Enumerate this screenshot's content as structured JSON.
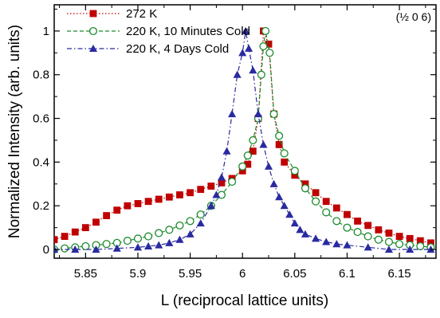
{
  "chart_data": {
    "type": "scatter",
    "xlabel": "L (reciprocal lattice units)",
    "ylabel": "Normalized Intensity (arb. units)",
    "annotation": "(½ 0 6)",
    "xlim": [
      5.82,
      6.185
    ],
    "ylim": [
      -0.04,
      1.12
    ],
    "x_ticks": [
      5.85,
      5.9,
      5.95,
      6.0,
      6.05,
      6.1,
      6.15
    ],
    "x_tick_labels": [
      "5.85",
      "5.9",
      "5.95",
      "6",
      "6.05",
      "6.1",
      "6.15"
    ],
    "y_ticks": [
      0,
      0.2,
      0.4,
      0.6,
      0.8,
      1.0
    ],
    "y_tick_labels": [
      "0",
      "0.2",
      "0.4",
      "0.6",
      "0.8",
      "1"
    ],
    "grid": false,
    "legend_position": "top-left",
    "series": [
      {
        "name": "272 K",
        "color": "#c00000",
        "marker": "square",
        "line": "dotted",
        "points": [
          [
            5.82,
            0.045
          ],
          [
            5.83,
            0.06
          ],
          [
            5.84,
            0.08
          ],
          [
            5.85,
            0.1
          ],
          [
            5.86,
            0.125
          ],
          [
            5.87,
            0.155
          ],
          [
            5.88,
            0.18
          ],
          [
            5.89,
            0.2
          ],
          [
            5.9,
            0.21
          ],
          [
            5.91,
            0.22
          ],
          [
            5.92,
            0.23
          ],
          [
            5.93,
            0.24
          ],
          [
            5.94,
            0.25
          ],
          [
            5.95,
            0.26
          ],
          [
            5.96,
            0.275
          ],
          [
            5.97,
            0.29
          ],
          [
            5.98,
            0.305
          ],
          [
            5.99,
            0.325
          ],
          [
            6.0,
            0.36
          ],
          [
            6.005,
            0.39
          ],
          [
            6.01,
            0.45
          ],
          [
            6.015,
            0.6
          ],
          [
            6.02,
            1.0
          ],
          [
            6.025,
            0.94
          ],
          [
            6.03,
            0.62
          ],
          [
            6.035,
            0.48
          ],
          [
            6.04,
            0.4
          ],
          [
            6.05,
            0.34
          ],
          [
            6.06,
            0.3
          ],
          [
            6.07,
            0.26
          ],
          [
            6.08,
            0.22
          ],
          [
            6.09,
            0.19
          ],
          [
            6.1,
            0.16
          ],
          [
            6.11,
            0.13
          ],
          [
            6.12,
            0.11
          ],
          [
            6.13,
            0.09
          ],
          [
            6.14,
            0.075
          ],
          [
            6.15,
            0.06
          ],
          [
            6.16,
            0.05
          ],
          [
            6.17,
            0.04
          ],
          [
            6.18,
            0.03
          ]
        ]
      },
      {
        "name": "220 K, 10 Minutes Cold",
        "color": "#1a8a2a",
        "marker": "circle",
        "line": "dashed",
        "points": [
          [
            5.82,
            0.0
          ],
          [
            5.83,
            0.005
          ],
          [
            5.84,
            0.01
          ],
          [
            5.85,
            0.015
          ],
          [
            5.86,
            0.02
          ],
          [
            5.87,
            0.025
          ],
          [
            5.88,
            0.03
          ],
          [
            5.89,
            0.04
          ],
          [
            5.9,
            0.05
          ],
          [
            5.91,
            0.06
          ],
          [
            5.92,
            0.075
          ],
          [
            5.93,
            0.09
          ],
          [
            5.94,
            0.11
          ],
          [
            5.95,
            0.13
          ],
          [
            5.96,
            0.16
          ],
          [
            5.97,
            0.2
          ],
          [
            5.98,
            0.25
          ],
          [
            5.99,
            0.31
          ],
          [
            6.0,
            0.38
          ],
          [
            6.005,
            0.43
          ],
          [
            6.01,
            0.5
          ],
          [
            6.015,
            0.6
          ],
          [
            6.018,
            0.8
          ],
          [
            6.02,
            0.93
          ],
          [
            6.022,
            1.0
          ],
          [
            6.026,
            0.9
          ],
          [
            6.03,
            0.62
          ],
          [
            6.035,
            0.52
          ],
          [
            6.04,
            0.44
          ],
          [
            6.05,
            0.36
          ],
          [
            6.06,
            0.28
          ],
          [
            6.07,
            0.22
          ],
          [
            6.08,
            0.17
          ],
          [
            6.09,
            0.13
          ],
          [
            6.1,
            0.1
          ],
          [
            6.11,
            0.08
          ],
          [
            6.12,
            0.06
          ],
          [
            6.13,
            0.045
          ],
          [
            6.14,
            0.035
          ],
          [
            6.15,
            0.025
          ],
          [
            6.16,
            0.02
          ],
          [
            6.17,
            0.015
          ],
          [
            6.18,
            0.01
          ]
        ]
      },
      {
        "name": "220 K, 4 Days Cold",
        "color": "#2a2aa0",
        "marker": "triangle",
        "line": "dash-dot",
        "points": [
          [
            5.82,
            0.0
          ],
          [
            5.84,
            0.0
          ],
          [
            5.86,
            0.0
          ],
          [
            5.88,
            0.005
          ],
          [
            5.9,
            0.01
          ],
          [
            5.91,
            0.015
          ],
          [
            5.92,
            0.02
          ],
          [
            5.93,
            0.03
          ],
          [
            5.94,
            0.045
          ],
          [
            5.95,
            0.07
          ],
          [
            5.96,
            0.12
          ],
          [
            5.97,
            0.2
          ],
          [
            5.975,
            0.25
          ],
          [
            5.98,
            0.33
          ],
          [
            5.985,
            0.45
          ],
          [
            5.99,
            0.62
          ],
          [
            5.995,
            0.8
          ],
          [
            6.0,
            0.9
          ],
          [
            6.003,
            1.0
          ],
          [
            6.006,
            0.92
          ],
          [
            6.01,
            0.82
          ],
          [
            6.015,
            0.62
          ],
          [
            6.02,
            0.48
          ],
          [
            6.025,
            0.38
          ],
          [
            6.03,
            0.3
          ],
          [
            6.035,
            0.24
          ],
          [
            6.04,
            0.2
          ],
          [
            6.045,
            0.16
          ],
          [
            6.05,
            0.12
          ],
          [
            6.055,
            0.09
          ],
          [
            6.06,
            0.07
          ],
          [
            6.07,
            0.05
          ],
          [
            6.08,
            0.035
          ],
          [
            6.09,
            0.025
          ],
          [
            6.1,
            0.02
          ],
          [
            6.12,
            0.01
          ],
          [
            6.14,
            0.0
          ],
          [
            6.16,
            0.0
          ],
          [
            6.18,
            0.0
          ]
        ]
      }
    ]
  }
}
